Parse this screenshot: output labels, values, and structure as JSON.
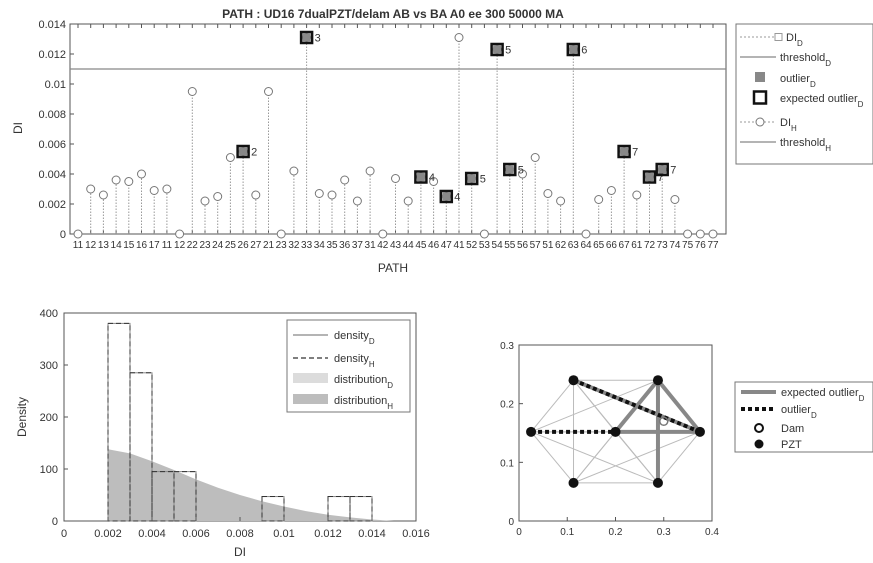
{
  "chart_data": [
    {
      "type": "scatter",
      "title": "PATH : UD16 7dualPZT/delam   AB vs BA    A0 ee    300    50000    MA",
      "xlabel": "PATH",
      "ylabel": "DI",
      "ylim": [
        0,
        0.014
      ],
      "yticks": [
        "0",
        "0.002",
        "0.004",
        "0.006",
        "0.008",
        "0.01",
        "0.012",
        "0.014"
      ],
      "categories": [
        "11",
        "12",
        "13",
        "14",
        "15",
        "16",
        "17",
        "11",
        "12",
        "22",
        "23",
        "24",
        "25",
        "26",
        "27",
        "21",
        "23",
        "32",
        "33",
        "34",
        "35",
        "36",
        "37",
        "31",
        "42",
        "43",
        "44",
        "45",
        "46",
        "47",
        "41",
        "52",
        "53",
        "54",
        "55",
        "56",
        "57",
        "51",
        "62",
        "63",
        "64",
        "65",
        "66",
        "67",
        "61",
        "72",
        "73",
        "74",
        "75",
        "76",
        "77"
      ],
      "values": [
        0,
        0.003,
        0.0026,
        0.0036,
        0.0035,
        0.004,
        0.0029,
        0.003,
        0,
        0.0095,
        0.0022,
        0.0025,
        0.0051,
        0.0055,
        0.0026,
        0.0095,
        0,
        0.0042,
        0.0131,
        0.0027,
        0.0026,
        0.0036,
        0.0022,
        0.0042,
        0,
        0.0037,
        0.0022,
        0.0038,
        0.0035,
        0.0025,
        0.0131,
        0.0037,
        0,
        0.0123,
        0.0043,
        0.004,
        0.0051,
        0.0027,
        0.0022,
        0.0123,
        0,
        0.0023,
        0.0029,
        0.0055,
        0.0026,
        0.0038,
        0.0043,
        0.0023,
        0,
        0,
        0
      ],
      "threshold": 0.011,
      "expected_outliers": [
        {
          "index": 13,
          "label": "2"
        },
        {
          "index": 18,
          "label": "3"
        },
        {
          "index": 27,
          "label": "4"
        },
        {
          "index": 29,
          "label": "4"
        },
        {
          "index": 31,
          "label": "5"
        },
        {
          "index": 33,
          "label": "5"
        },
        {
          "index": 34,
          "label": "5"
        },
        {
          "index": 39,
          "label": "6"
        },
        {
          "index": 43,
          "label": "7"
        },
        {
          "index": 45,
          "label": "7"
        },
        {
          "index": 46,
          "label": "7"
        }
      ],
      "legend_position": "right",
      "legend": [
        "DI_D",
        "threshold_D",
        "outlier_D",
        "expected outlier_D",
        "DI_H",
        "threshold_H"
      ]
    },
    {
      "type": "bar",
      "xlabel": "DI",
      "ylabel": "Density",
      "xlim": [
        0,
        0.016
      ],
      "ylim": [
        0,
        400
      ],
      "xticks": [
        "0",
        "0.002",
        "0.004",
        "0.006",
        "0.008",
        "0.01",
        "0.012",
        "0.014",
        "0.016"
      ],
      "yticks": [
        "0",
        "100",
        "200",
        "300",
        "400"
      ],
      "bin_edges": [
        0.002,
        0.003,
        0.004,
        0.005,
        0.006,
        0.007,
        0.008,
        0.009,
        0.01,
        0.011,
        0.012,
        0.013,
        0.014
      ],
      "histogram_D": [
        380,
        285,
        95,
        95,
        0,
        0,
        0,
        47,
        0,
        0,
        47,
        47
      ],
      "histogram_H": [
        380,
        285,
        95,
        95,
        0,
        0,
        0,
        47,
        0,
        0,
        47,
        47
      ],
      "density_area_x": [
        0.002,
        0.003,
        0.004,
        0.005,
        0.006,
        0.007,
        0.008,
        0.009,
        0.01,
        0.011,
        0.012,
        0.013,
        0.014,
        0.015
      ],
      "density_area_y": [
        138,
        130,
        115,
        98,
        80,
        64,
        50,
        38,
        28,
        19,
        12,
        7,
        3,
        0
      ],
      "legend_position": "top-right",
      "legend": [
        "density_D",
        "density_H",
        "distribution_D",
        "distribution_H"
      ]
    },
    {
      "type": "scatter",
      "xlim": [
        0,
        0.4
      ],
      "ylim": [
        0,
        0.3
      ],
      "xticks": [
        "0",
        "0.1",
        "0.2",
        "0.3",
        "0.4"
      ],
      "yticks": [
        "0",
        "0.1",
        "0.2",
        "0.3"
      ],
      "nodes": [
        [
          0.025,
          0.152
        ],
        [
          0.113,
          0.24
        ],
        [
          0.113,
          0.065
        ],
        [
          0.2,
          0.152
        ],
        [
          0.288,
          0.24
        ],
        [
          0.288,
          0.065
        ],
        [
          0.375,
          0.152
        ]
      ],
      "expected_outlier_edges": [
        [
          1,
          6
        ],
        [
          4,
          3
        ],
        [
          4,
          6
        ],
        [
          4,
          5
        ],
        [
          3,
          6
        ]
      ],
      "outlier_edges": [
        [
          0,
          3
        ],
        [
          1,
          6
        ]
      ],
      "dam_points": [
        [
          0.3,
          0.17
        ]
      ],
      "legend_position": "right",
      "legend": [
        "expected outlier_D",
        "outlier_D",
        "Dam",
        "PZT"
      ]
    }
  ]
}
